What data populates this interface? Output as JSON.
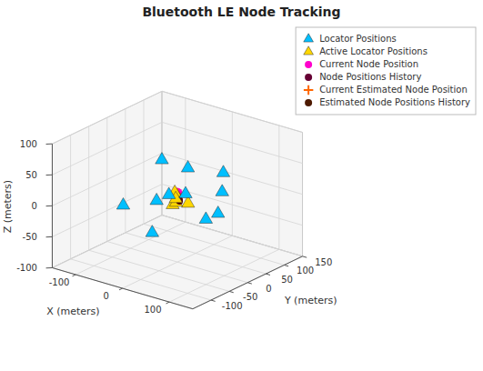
{
  "chart_data": {
    "type": "scatter3d",
    "title": "Bluetooth LE Node Tracking",
    "xlabel": "X (meters)",
    "ylabel": "Y (meters)",
    "zlabel": "Z (meters)",
    "xlim": [
      -150,
      150
    ],
    "ylim": [
      -150,
      150
    ],
    "zlim": [
      -100,
      100
    ],
    "xticks": [
      -100,
      0,
      100
    ],
    "yticks": [
      -100,
      -50,
      0,
      50,
      100,
      150
    ],
    "zticks": [
      -100,
      -50,
      0,
      50,
      100
    ],
    "grid": true,
    "legend": "upper right",
    "series": [
      {
        "name": "Locator Positions",
        "color": "#00BFFF",
        "marker": "triangle",
        "x": [
          100,
          80,
          60,
          40,
          -40,
          -80,
          20,
          -60,
          80,
          -100,
          40
        ],
        "y": [
          -50,
          -80,
          -100,
          60,
          80,
          60,
          100,
          20,
          20,
          -20,
          -120
        ],
        "z": [
          5,
          50,
          50,
          -30,
          20,
          30,
          20,
          -20,
          25,
          -25,
          -10
        ]
      },
      {
        "name": "Active Locator Positions",
        "color": "#FFD700",
        "marker": "triangle",
        "x": [
          10,
          20,
          5,
          15,
          -10
        ],
        "y": [
          -20,
          -30,
          -10,
          10,
          0
        ],
        "z": [
          20,
          15,
          0,
          -5,
          -10
        ]
      },
      {
        "name": "Current Node Position",
        "color": "#FF00CC",
        "marker": "circle",
        "x": [
          -2
        ],
        "y": [
          2
        ],
        "z": [
          10
        ]
      },
      {
        "name": "Node Positions History",
        "color": "#660033",
        "marker": "circle",
        "colors": [
          "#660000",
          "#800415",
          "#99082a",
          "#b20d40",
          "#cc1155",
          "#e6156a",
          "#ff1a80"
        ],
        "x": [
          20,
          18,
          14,
          10,
          6,
          2,
          -2
        ],
        "y": [
          -20,
          -18,
          -14,
          -10,
          -6,
          -2,
          2
        ],
        "z": [
          10,
          10,
          10,
          10,
          10,
          10,
          10
        ]
      },
      {
        "name": "Current Estimated Node Position",
        "color": "#FF6600",
        "marker": "plus",
        "x": [
          0
        ],
        "y": [
          0
        ],
        "z": [
          9
        ]
      },
      {
        "name": "Estimated Node Positions History",
        "color": "#4d1a00",
        "marker": "circle",
        "colors": [
          "#4c0000",
          "#661100",
          "#802200",
          "#993300",
          "#b24400",
          "#cc5500",
          "#e66600"
        ],
        "x": [
          22,
          20,
          16,
          12,
          8,
          4,
          0
        ],
        "y": [
          -22,
          -20,
          -16,
          -12,
          -8,
          -4,
          0
        ],
        "z": [
          9,
          9,
          9,
          9,
          9,
          9,
          9
        ]
      }
    ]
  }
}
